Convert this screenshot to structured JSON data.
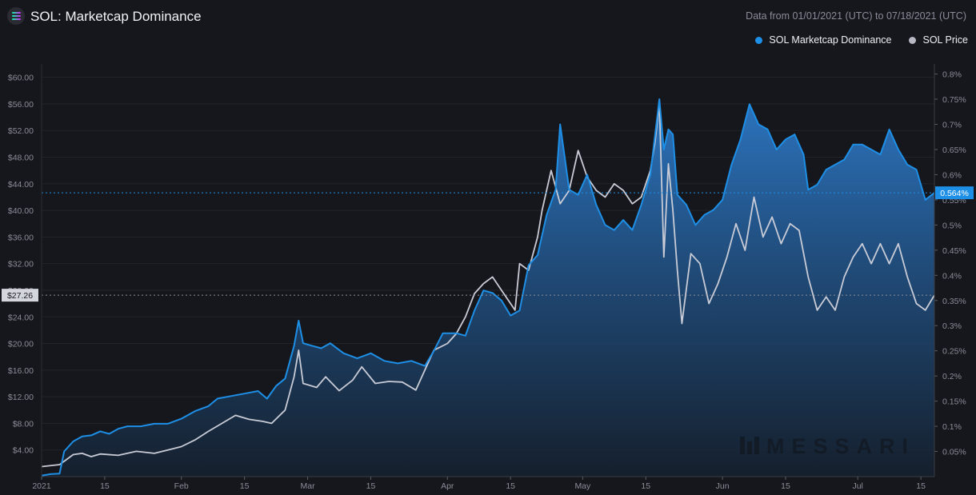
{
  "header": {
    "title": "SOL: Marketcap Dominance",
    "date_range": "Data from 01/01/2021 (UTC) to 07/18/2021 (UTC)",
    "watermark": "MESSARI"
  },
  "colors": {
    "background": "#16171c",
    "dominance": "#1e8fe6",
    "price": "#c9ccd6",
    "grid": "#24262d"
  },
  "chart_data": {
    "type": "line",
    "series": [
      {
        "name": "SOL Marketcap Dominance",
        "axis": "right",
        "color": "#1e8fe6"
      },
      {
        "name": "SOL Price",
        "axis": "left",
        "color": "#c9ccd6"
      }
    ],
    "x_start": "2021-01-01",
    "x_end": "2021-07-18",
    "x_ticks": [
      {
        "date": "2021-01-01",
        "label": "2021"
      },
      {
        "date": "2021-01-15",
        "label": "15"
      },
      {
        "date": "2021-02-01",
        "label": "Feb"
      },
      {
        "date": "2021-02-15",
        "label": "15"
      },
      {
        "date": "2021-03-01",
        "label": "Mar"
      },
      {
        "date": "2021-03-15",
        "label": "15"
      },
      {
        "date": "2021-04-01",
        "label": "Apr"
      },
      {
        "date": "2021-04-15",
        "label": "15"
      },
      {
        "date": "2021-05-01",
        "label": "May"
      },
      {
        "date": "2021-05-15",
        "label": "15"
      },
      {
        "date": "2021-06-01",
        "label": "Jun"
      },
      {
        "date": "2021-06-15",
        "label": "15"
      },
      {
        "date": "2021-07-01",
        "label": "Jul"
      },
      {
        "date": "2021-07-15",
        "label": "15"
      }
    ],
    "y_left": {
      "range": [
        0,
        62
      ],
      "ticks": [
        4,
        8,
        12,
        16,
        20,
        24,
        28,
        32,
        36,
        40,
        44,
        48,
        52,
        56,
        60
      ],
      "tick_labels": [
        "$4.00",
        "$8.00",
        "$12.00",
        "$16.00",
        "$20.00",
        "$24.00",
        "$28.00",
        "$32.00",
        "$36.00",
        "$40.00",
        "$44.00",
        "$48.00",
        "$52.00",
        "$56.00",
        "$60.00"
      ]
    },
    "y_right": {
      "range": [
        0,
        0.82
      ],
      "ticks": [
        0.05,
        0.1,
        0.15,
        0.2,
        0.25,
        0.3,
        0.35,
        0.4,
        0.45,
        0.5,
        0.55,
        0.6,
        0.65,
        0.7,
        0.75,
        0.8
      ],
      "tick_labels": [
        "0.05%",
        "0.1%",
        "0.15%",
        "0.2%",
        "0.25%",
        "0.3%",
        "0.35%",
        "0.4%",
        "0.45%",
        "0.5%",
        "0.55%",
        "0.6%",
        "0.65%",
        "0.7%",
        "0.75%",
        "0.8%"
      ]
    },
    "dominance_points": [
      [
        "2021-01-01",
        0.002
      ],
      [
        "2021-01-03",
        0.005
      ],
      [
        "2021-01-05",
        0.006
      ],
      [
        "2021-01-06",
        0.05
      ],
      [
        "2021-01-08",
        0.07
      ],
      [
        "2021-01-10",
        0.08
      ],
      [
        "2021-01-12",
        0.082
      ],
      [
        "2021-01-14",
        0.09
      ],
      [
        "2021-01-16",
        0.085
      ],
      [
        "2021-01-18",
        0.095
      ],
      [
        "2021-01-20",
        0.1
      ],
      [
        "2021-01-23",
        0.1
      ],
      [
        "2021-01-26",
        0.105
      ],
      [
        "2021-01-29",
        0.105
      ],
      [
        "2021-02-01",
        0.115
      ],
      [
        "2021-02-04",
        0.13
      ],
      [
        "2021-02-07",
        0.14
      ],
      [
        "2021-02-09",
        0.155
      ],
      [
        "2021-02-12",
        0.16
      ],
      [
        "2021-02-15",
        0.165
      ],
      [
        "2021-02-18",
        0.17
      ],
      [
        "2021-02-20",
        0.155
      ],
      [
        "2021-02-22",
        0.18
      ],
      [
        "2021-02-24",
        0.195
      ],
      [
        "2021-02-26",
        0.26
      ],
      [
        "2021-02-27",
        0.31
      ],
      [
        "2021-02-28",
        0.265
      ],
      [
        "2021-03-02",
        0.26
      ],
      [
        "2021-03-04",
        0.255
      ],
      [
        "2021-03-06",
        0.265
      ],
      [
        "2021-03-09",
        0.245
      ],
      [
        "2021-03-12",
        0.235
      ],
      [
        "2021-03-15",
        0.245
      ],
      [
        "2021-03-18",
        0.23
      ],
      [
        "2021-03-21",
        0.225
      ],
      [
        "2021-03-24",
        0.23
      ],
      [
        "2021-03-27",
        0.22
      ],
      [
        "2021-03-29",
        0.25
      ],
      [
        "2021-03-31",
        0.285
      ],
      [
        "2021-04-03",
        0.285
      ],
      [
        "2021-04-05",
        0.28
      ],
      [
        "2021-04-07",
        0.33
      ],
      [
        "2021-04-09",
        0.37
      ],
      [
        "2021-04-11",
        0.365
      ],
      [
        "2021-04-13",
        0.35
      ],
      [
        "2021-04-15",
        0.32
      ],
      [
        "2021-04-17",
        0.33
      ],
      [
        "2021-04-19",
        0.42
      ],
      [
        "2021-04-21",
        0.44
      ],
      [
        "2021-04-23",
        0.52
      ],
      [
        "2021-04-25",
        0.57
      ],
      [
        "2021-04-26",
        0.7
      ],
      [
        "2021-04-28",
        0.57
      ],
      [
        "2021-04-30",
        0.56
      ],
      [
        "2021-05-02",
        0.6
      ],
      [
        "2021-05-04",
        0.54
      ],
      [
        "2021-05-06",
        0.5
      ],
      [
        "2021-05-08",
        0.49
      ],
      [
        "2021-05-10",
        0.51
      ],
      [
        "2021-05-12",
        0.49
      ],
      [
        "2021-05-14",
        0.54
      ],
      [
        "2021-05-16",
        0.6
      ],
      [
        "2021-05-18",
        0.75
      ],
      [
        "2021-05-19",
        0.65
      ],
      [
        "2021-05-20",
        0.69
      ],
      [
        "2021-05-21",
        0.68
      ],
      [
        "2021-05-22",
        0.56
      ],
      [
        "2021-05-24",
        0.54
      ],
      [
        "2021-05-26",
        0.5
      ],
      [
        "2021-05-28",
        0.52
      ],
      [
        "2021-05-30",
        0.53
      ],
      [
        "2021-06-01",
        0.55
      ],
      [
        "2021-06-03",
        0.62
      ],
      [
        "2021-06-05",
        0.67
      ],
      [
        "2021-06-07",
        0.74
      ],
      [
        "2021-06-09",
        0.7
      ],
      [
        "2021-06-11",
        0.69
      ],
      [
        "2021-06-13",
        0.65
      ],
      [
        "2021-06-15",
        0.67
      ],
      [
        "2021-06-17",
        0.68
      ],
      [
        "2021-06-19",
        0.64
      ],
      [
        "2021-06-20",
        0.57
      ],
      [
        "2021-06-22",
        0.58
      ],
      [
        "2021-06-24",
        0.61
      ],
      [
        "2021-06-26",
        0.62
      ],
      [
        "2021-06-28",
        0.63
      ],
      [
        "2021-06-30",
        0.66
      ],
      [
        "2021-07-02",
        0.66
      ],
      [
        "2021-07-04",
        0.65
      ],
      [
        "2021-07-06",
        0.64
      ],
      [
        "2021-07-08",
        0.69
      ],
      [
        "2021-07-10",
        0.65
      ],
      [
        "2021-07-12",
        0.62
      ],
      [
        "2021-07-14",
        0.61
      ],
      [
        "2021-07-16",
        0.55
      ],
      [
        "2021-07-18",
        0.564
      ]
    ],
    "price_points": [
      [
        "2021-01-01",
        1.5
      ],
      [
        "2021-01-05",
        1.8
      ],
      [
        "2021-01-08",
        3.3
      ],
      [
        "2021-01-10",
        3.5
      ],
      [
        "2021-01-12",
        3.0
      ],
      [
        "2021-01-14",
        3.4
      ],
      [
        "2021-01-18",
        3.2
      ],
      [
        "2021-01-22",
        3.8
      ],
      [
        "2021-01-26",
        3.5
      ],
      [
        "2021-01-29",
        4.0
      ],
      [
        "2021-02-01",
        4.5
      ],
      [
        "2021-02-04",
        5.5
      ],
      [
        "2021-02-07",
        6.8
      ],
      [
        "2021-02-10",
        8.0
      ],
      [
        "2021-02-13",
        9.2
      ],
      [
        "2021-02-16",
        8.6
      ],
      [
        "2021-02-19",
        8.3
      ],
      [
        "2021-02-21",
        8.0
      ],
      [
        "2021-02-24",
        10.0
      ],
      [
        "2021-02-26",
        15.0
      ],
      [
        "2021-02-27",
        19.0
      ],
      [
        "2021-02-28",
        14.0
      ],
      [
        "2021-03-03",
        13.4
      ],
      [
        "2021-03-05",
        15.0
      ],
      [
        "2021-03-08",
        12.9
      ],
      [
        "2021-03-11",
        14.5
      ],
      [
        "2021-03-13",
        16.5
      ],
      [
        "2021-03-16",
        14.0
      ],
      [
        "2021-03-19",
        14.3
      ],
      [
        "2021-03-22",
        14.2
      ],
      [
        "2021-03-25",
        13.0
      ],
      [
        "2021-03-27",
        16.0
      ],
      [
        "2021-03-29",
        19.0
      ],
      [
        "2021-04-01",
        20.0
      ],
      [
        "2021-04-03",
        21.5
      ],
      [
        "2021-04-05",
        24.0
      ],
      [
        "2021-04-07",
        27.5
      ],
      [
        "2021-04-09",
        29.0
      ],
      [
        "2021-04-11",
        30.0
      ],
      [
        "2021-04-13",
        28.0
      ],
      [
        "2021-04-15",
        26.0
      ],
      [
        "2021-04-16",
        25.0
      ],
      [
        "2021-04-17",
        32.0
      ],
      [
        "2021-04-19",
        31.0
      ],
      [
        "2021-04-21",
        36.0
      ],
      [
        "2021-04-22",
        40.0
      ],
      [
        "2021-04-24",
        46.0
      ],
      [
        "2021-04-26",
        41.0
      ],
      [
        "2021-04-28",
        43.0
      ],
      [
        "2021-04-30",
        49.0
      ],
      [
        "2021-05-02",
        45.0
      ],
      [
        "2021-05-04",
        43.0
      ],
      [
        "2021-05-06",
        42.0
      ],
      [
        "2021-05-08",
        44.0
      ],
      [
        "2021-05-10",
        43.0
      ],
      [
        "2021-05-12",
        41.0
      ],
      [
        "2021-05-14",
        42.0
      ],
      [
        "2021-05-16",
        46.0
      ],
      [
        "2021-05-17",
        50.0
      ],
      [
        "2021-05-18",
        56.0
      ],
      [
        "2021-05-19",
        33.0
      ],
      [
        "2021-05-20",
        47.0
      ],
      [
        "2021-05-21",
        40.0
      ],
      [
        "2021-05-22",
        31.0
      ],
      [
        "2021-05-23",
        23.0
      ],
      [
        "2021-05-25",
        33.5
      ],
      [
        "2021-05-27",
        32.0
      ],
      [
        "2021-05-29",
        26.0
      ],
      [
        "2021-05-31",
        29.0
      ],
      [
        "2021-06-02",
        33.0
      ],
      [
        "2021-06-04",
        38.0
      ],
      [
        "2021-06-06",
        34.0
      ],
      [
        "2021-06-08",
        42.0
      ],
      [
        "2021-06-10",
        36.0
      ],
      [
        "2021-06-12",
        39.0
      ],
      [
        "2021-06-14",
        35.0
      ],
      [
        "2021-06-16",
        38.0
      ],
      [
        "2021-06-18",
        37.0
      ],
      [
        "2021-06-20",
        30.0
      ],
      [
        "2021-06-22",
        25.0
      ],
      [
        "2021-06-24",
        27.0
      ],
      [
        "2021-06-26",
        25.0
      ],
      [
        "2021-06-28",
        30.0
      ],
      [
        "2021-06-30",
        33.0
      ],
      [
        "2021-07-02",
        35.0
      ],
      [
        "2021-07-04",
        32.0
      ],
      [
        "2021-07-06",
        35.0
      ],
      [
        "2021-07-08",
        32.0
      ],
      [
        "2021-07-10",
        35.0
      ],
      [
        "2021-07-12",
        30.0
      ],
      [
        "2021-07-14",
        26.0
      ],
      [
        "2021-07-16",
        25.0
      ],
      [
        "2021-07-18",
        27.26
      ]
    ],
    "crosshair": {
      "price_label": "$27.26",
      "dominance_label": "0.564%",
      "price_value": 27.26,
      "dominance_value": 0.564
    }
  }
}
